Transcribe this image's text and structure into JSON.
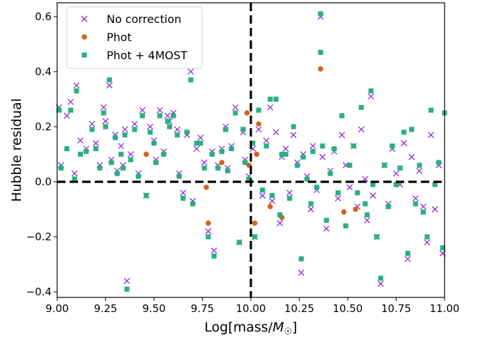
{
  "chart_data": {
    "type": "scatter",
    "xlabel": "Log[mass/M☉]",
    "ylabel": "Hubble residual",
    "xlim": [
      9.0,
      11.0
    ],
    "ylim": [
      -0.42,
      0.65
    ],
    "x_ticks": [
      "9.00",
      "9.25",
      "9.50",
      "9.75",
      "10.00",
      "10.25",
      "10.50",
      "10.75",
      "11.00"
    ],
    "x_tick_values": [
      9.0,
      9.25,
      9.5,
      9.75,
      10.0,
      10.25,
      10.5,
      10.75,
      11.0
    ],
    "y_ticks": [
      "−0.4",
      "−0.2",
      "0.0",
      "0.2",
      "0.4",
      "0.6"
    ],
    "y_tick_values": [
      -0.4,
      -0.2,
      0.0,
      0.2,
      0.4,
      0.6
    ],
    "legend_position": "top-left",
    "reference_lines": {
      "vertical_x": 10.0,
      "horizontal_y": 0.0,
      "style": "dashed"
    },
    "series": [
      {
        "name": "No correction",
        "marker": "x",
        "color": "#8a2be2",
        "points": [
          [
            9.01,
            0.27
          ],
          [
            9.02,
            0.06
          ],
          [
            9.05,
            0.24
          ],
          [
            9.07,
            0.29
          ],
          [
            9.1,
            0.35
          ],
          [
            9.09,
            0.03
          ],
          [
            9.12,
            0.15
          ],
          [
            9.15,
            0.12
          ],
          [
            9.18,
            0.21
          ],
          [
            9.2,
            0.14
          ],
          [
            9.22,
            0.06
          ],
          [
            9.24,
            0.27
          ],
          [
            9.25,
            0.22
          ],
          [
            9.27,
            0.35
          ],
          [
            9.28,
            0.08
          ],
          [
            9.3,
            0.17
          ],
          [
            9.31,
            0.04
          ],
          [
            9.33,
            0.13
          ],
          [
            9.34,
            0.06
          ],
          [
            9.35,
            0.19
          ],
          [
            9.36,
            -0.36
          ],
          [
            9.38,
            0.1
          ],
          [
            9.4,
            0.21
          ],
          [
            9.42,
            0.03
          ],
          [
            9.44,
            0.26
          ],
          [
            9.46,
            -0.05
          ],
          [
            9.48,
            0.2
          ],
          [
            9.5,
            0.15
          ],
          [
            9.51,
            0.08
          ],
          [
            9.53,
            0.26
          ],
          [
            9.55,
            0.11
          ],
          [
            9.57,
            0.24
          ],
          [
            9.58,
            0.22
          ],
          [
            9.6,
            0.25
          ],
          [
            9.62,
            0.19
          ],
          [
            9.63,
            0.03
          ],
          [
            9.65,
            -0.04
          ],
          [
            9.67,
            0.17
          ],
          [
            9.69,
            0.4
          ],
          [
            9.7,
            -0.07
          ],
          [
            9.72,
            0.12
          ],
          [
            9.74,
            0.16
          ],
          [
            9.76,
            0.07
          ],
          [
            9.78,
            -0.18
          ],
          [
            9.8,
            0.11
          ],
          [
            9.81,
            -0.25
          ],
          [
            9.83,
            0.06
          ],
          [
            9.85,
            0.12
          ],
          [
            9.87,
            0.2
          ],
          [
            9.88,
            0.05
          ],
          [
            9.9,
            0.13
          ],
          [
            9.92,
            0.27
          ],
          [
            9.94,
            -0.22
          ],
          [
            9.96,
            0.18
          ],
          [
            9.97,
            0.08
          ],
          [
            9.99,
            0.02
          ],
          [
            10.01,
            0.12
          ],
          [
            10.02,
            -0.2
          ],
          [
            10.04,
            0.19
          ],
          [
            10.06,
            -0.05
          ],
          [
            10.08,
            0.15
          ],
          [
            10.1,
            0.27
          ],
          [
            10.11,
            -0.07
          ],
          [
            10.13,
            0.18
          ],
          [
            10.15,
            -0.15
          ],
          [
            10.16,
            0.09
          ],
          [
            10.18,
            0.12
          ],
          [
            10.2,
            -0.04
          ],
          [
            10.22,
            0.17
          ],
          [
            10.24,
            0.07
          ],
          [
            10.26,
            -0.33
          ],
          [
            10.27,
            0.1
          ],
          [
            10.29,
            0.02
          ],
          [
            10.31,
            -0.1
          ],
          [
            10.32,
            0.13
          ],
          [
            10.34,
            -0.03
          ],
          [
            10.36,
            0.6
          ],
          [
            10.37,
            0.09
          ],
          [
            10.39,
            -0.17
          ],
          [
            10.41,
            0.04
          ],
          [
            10.43,
            0.11
          ],
          [
            10.45,
            -0.06
          ],
          [
            10.47,
            0.17
          ],
          [
            10.49,
            0.06
          ],
          [
            10.51,
            -0.02
          ],
          [
            10.53,
            0.13
          ],
          [
            10.55,
            -0.09
          ],
          [
            10.57,
            0.19
          ],
          [
            10.59,
            0.01
          ],
          [
            10.6,
            -0.14
          ],
          [
            10.62,
            0.31
          ],
          [
            10.63,
            -0.05
          ],
          [
            10.65,
            -0.2
          ],
          [
            10.67,
            -0.37
          ],
          [
            10.69,
            0.06
          ],
          [
            10.71,
            -0.08
          ],
          [
            10.73,
            0.12
          ],
          [
            10.75,
            0.03
          ],
          [
            10.77,
            -0.01
          ],
          [
            10.79,
            0.14
          ],
          [
            10.81,
            -0.28
          ],
          [
            10.83,
            0.09
          ],
          [
            10.85,
            -0.06
          ],
          [
            10.87,
            0.04
          ],
          [
            10.89,
            -0.09
          ],
          [
            10.91,
            -0.22
          ],
          [
            10.93,
            0.17
          ],
          [
            10.95,
            -0.1
          ],
          [
            10.97,
            0.06
          ],
          [
            10.99,
            -0.26
          ]
        ]
      },
      {
        "name": "Phot",
        "marker": "o",
        "color": "#d95f1e",
        "points": [
          [
            9.46,
            0.1
          ],
          [
            9.77,
            -0.02
          ],
          [
            9.78,
            -0.15
          ],
          [
            9.98,
            0.25
          ],
          [
            9.99,
            0.06
          ],
          [
            10.02,
            -0.15
          ],
          [
            10.04,
            0.21
          ],
          [
            10.1,
            -0.09
          ],
          [
            10.16,
            -0.13
          ],
          [
            10.36,
            0.41
          ],
          [
            10.48,
            -0.11
          ],
          [
            10.54,
            -0.1
          ],
          [
            10.03,
            0.1
          ],
          [
            9.85,
            0.07
          ]
        ]
      },
      {
        "name": "Phot + 4MOST",
        "marker": "s",
        "color": "#2ab07f",
        "points": [
          [
            9.01,
            0.26
          ],
          [
            9.02,
            0.05
          ],
          [
            9.05,
            0.12
          ],
          [
            9.07,
            0.26
          ],
          [
            9.1,
            0.33
          ],
          [
            9.09,
            0.01
          ],
          [
            9.12,
            0.1
          ],
          [
            9.15,
            0.11
          ],
          [
            9.18,
            0.19
          ],
          [
            9.2,
            0.12
          ],
          [
            9.22,
            0.05
          ],
          [
            9.24,
            0.25
          ],
          [
            9.25,
            0.2
          ],
          [
            9.27,
            0.37
          ],
          [
            9.28,
            0.07
          ],
          [
            9.3,
            0.16
          ],
          [
            9.31,
            0.03
          ],
          [
            9.33,
            0.1
          ],
          [
            9.34,
            0.05
          ],
          [
            9.35,
            0.17
          ],
          [
            9.36,
            -0.39
          ],
          [
            9.38,
            0.08
          ],
          [
            9.4,
            0.19
          ],
          [
            9.42,
            0.02
          ],
          [
            9.44,
            0.24
          ],
          [
            9.46,
            -0.05
          ],
          [
            9.48,
            0.18
          ],
          [
            9.5,
            0.14
          ],
          [
            9.51,
            0.07
          ],
          [
            9.53,
            0.24
          ],
          [
            9.55,
            0.1
          ],
          [
            9.57,
            0.22
          ],
          [
            9.58,
            0.2
          ],
          [
            9.6,
            0.24
          ],
          [
            9.62,
            0.17
          ],
          [
            9.63,
            0.02
          ],
          [
            9.65,
            -0.06
          ],
          [
            9.67,
            0.18
          ],
          [
            9.69,
            0.37
          ],
          [
            9.7,
            -0.08
          ],
          [
            9.72,
            0.14
          ],
          [
            9.74,
            0.14
          ],
          [
            9.76,
            0.05
          ],
          [
            9.78,
            -0.2
          ],
          [
            9.8,
            0.1
          ],
          [
            9.81,
            -0.27
          ],
          [
            9.83,
            0.05
          ],
          [
            9.85,
            0.11
          ],
          [
            9.87,
            0.19
          ],
          [
            9.88,
            0.04
          ],
          [
            9.9,
            0.12
          ],
          [
            9.92,
            0.25
          ],
          [
            9.94,
            -0.22
          ],
          [
            9.96,
            0.19
          ],
          [
            9.97,
            0.07
          ],
          [
            9.99,
            0.01
          ],
          [
            10.01,
            0.14
          ],
          [
            10.02,
            -0.2
          ],
          [
            10.04,
            0.26
          ],
          [
            10.06,
            -0.03
          ],
          [
            10.08,
            0.13
          ],
          [
            10.1,
            0.3
          ],
          [
            10.11,
            -0.05
          ],
          [
            10.13,
            0.3
          ],
          [
            10.15,
            -0.12
          ],
          [
            10.16,
            0.1
          ],
          [
            10.18,
            0.1
          ],
          [
            10.2,
            -0.06
          ],
          [
            10.22,
            0.2
          ],
          [
            10.24,
            0.06
          ],
          [
            10.26,
            -0.28
          ],
          [
            10.27,
            0.09
          ],
          [
            10.29,
            0.01
          ],
          [
            10.31,
            -0.08
          ],
          [
            10.32,
            0.11
          ],
          [
            10.34,
            -0.02
          ],
          [
            10.36,
            0.61
          ],
          [
            10.37,
            0.13
          ],
          [
            10.39,
            -0.14
          ],
          [
            10.41,
            0.03
          ],
          [
            10.43,
            0.12
          ],
          [
            10.45,
            -0.04
          ],
          [
            10.47,
            0.24
          ],
          [
            10.49,
            -0.16
          ],
          [
            10.51,
            0.06
          ],
          [
            10.53,
            0.13
          ],
          [
            10.55,
            -0.04
          ],
          [
            10.57,
            0.27
          ],
          [
            10.59,
            -0.08
          ],
          [
            10.6,
            -0.12
          ],
          [
            10.62,
            0.33
          ],
          [
            10.63,
            -0.01
          ],
          [
            10.65,
            -0.2
          ],
          [
            10.67,
            -0.35
          ],
          [
            10.69,
            0.06
          ],
          [
            10.71,
            -0.09
          ],
          [
            10.73,
            0.13
          ],
          [
            10.75,
            -0.01
          ],
          [
            10.77,
            0.05
          ],
          [
            10.79,
            0.18
          ],
          [
            10.81,
            -0.26
          ],
          [
            10.83,
            0.19
          ],
          [
            10.85,
            -0.08
          ],
          [
            10.87,
            0.06
          ],
          [
            10.89,
            -0.11
          ],
          [
            10.91,
            -0.2
          ],
          [
            10.93,
            0.26
          ],
          [
            10.95,
            -0.01
          ],
          [
            10.97,
            0.07
          ],
          [
            10.99,
            -0.24
          ],
          [
            10.36,
            0.47
          ],
          [
            11.0,
            0.25
          ]
        ]
      }
    ]
  }
}
